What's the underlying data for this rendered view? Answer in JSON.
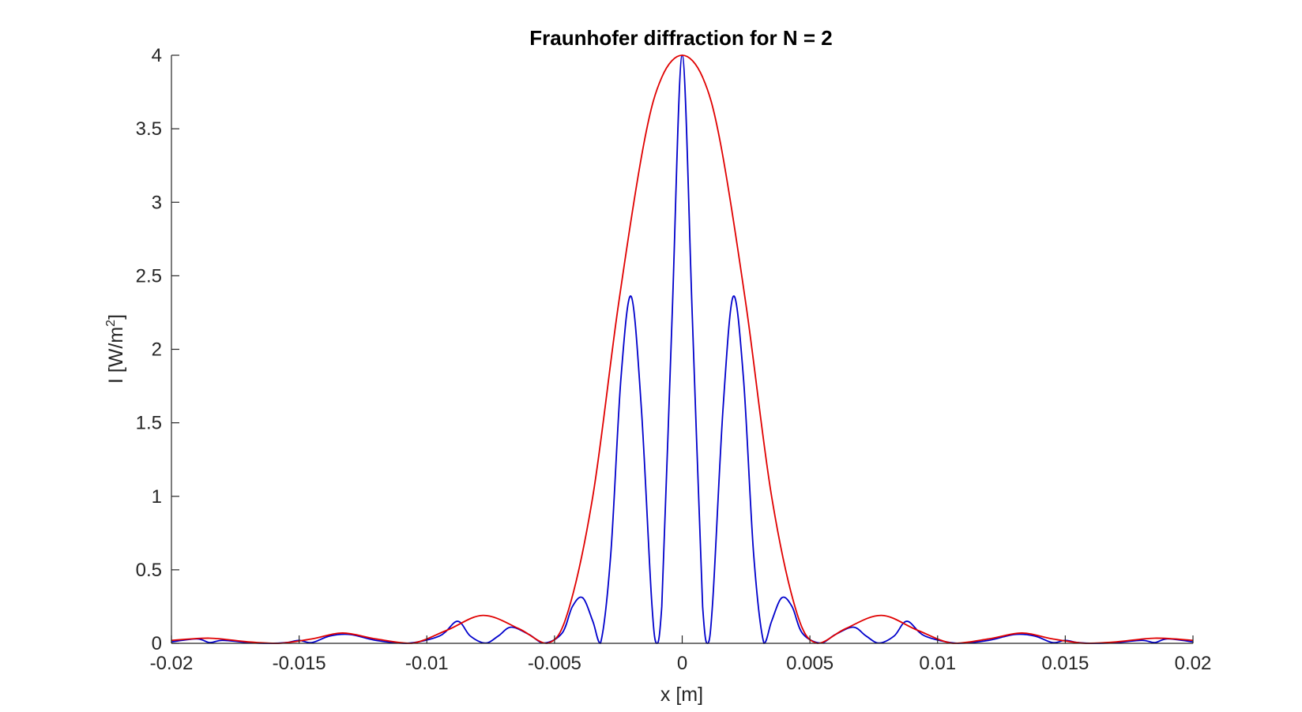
{
  "chart_data": {
    "type": "line",
    "title": "Fraunhofer diffraction for N = 2",
    "xlabel": "x [m]",
    "ylabel": "I [W/m",
    "ylabel_superscript": "2",
    "ylabel_close": "]",
    "xlim": [
      -0.02,
      0.02
    ],
    "ylim": [
      0,
      4
    ],
    "grid": false,
    "legend": "none",
    "xticks": [
      -0.02,
      -0.015,
      -0.01,
      -0.005,
      0,
      0.005,
      0.01,
      0.015,
      0.02
    ],
    "xtick_labels": [
      "-0.02",
      "-0.015",
      "-0.01",
      "-0.005",
      "0",
      "0.005",
      "0.01",
      "0.015",
      "0.02"
    ],
    "yticks": [
      0,
      0.5,
      1,
      1.5,
      2,
      2.5,
      3,
      3.5,
      4
    ],
    "ytick_labels": [
      "0",
      "0.5",
      "1",
      "1.5",
      "2",
      "2.5",
      "3",
      "3.5",
      "4"
    ],
    "series": [
      {
        "color": "#0000cc",
        "x": [
          -0.02,
          -0.019,
          -0.0185,
          -0.018,
          -0.017,
          -0.0162,
          -0.0155,
          -0.015,
          -0.0145,
          -0.0138,
          -0.013,
          -0.012,
          -0.0108,
          -0.0095,
          -0.0088,
          -0.0083,
          -0.0077,
          -0.0072,
          -0.0067,
          -0.006,
          -0.0054,
          -0.0047,
          -0.0043,
          -0.0039,
          -0.0035,
          -0.0032,
          -0.0028,
          -0.0024,
          -0.002,
          -0.0016,
          -0.0012,
          -0.001,
          -0.0008,
          -0.0004,
          0,
          0.0004,
          0.0008,
          0.001,
          0.0012,
          0.0016,
          0.002,
          0.0024,
          0.0028,
          0.0032,
          0.0035,
          0.0039,
          0.0043,
          0.0047,
          0.0054,
          0.006,
          0.0067,
          0.0072,
          0.0077,
          0.0083,
          0.0088,
          0.0095,
          0.0108,
          0.012,
          0.013,
          0.0138,
          0.0145,
          0.015,
          0.0155,
          0.0162,
          0.017,
          0.018,
          0.0185,
          0.019,
          0.02
        ],
        "y": [
          0.01,
          0.03,
          0.005,
          0.02,
          0.005,
          0.0,
          0.005,
          0.02,
          0.005,
          0.05,
          0.06,
          0.02,
          0.0,
          0.05,
          0.15,
          0.05,
          0.002,
          0.05,
          0.11,
          0.06,
          0.002,
          0.07,
          0.25,
          0.31,
          0.15,
          0.0,
          0.6,
          1.8,
          2.36,
          1.6,
          0.3,
          0.0,
          0.25,
          2.2,
          4.0,
          2.2,
          0.25,
          0.0,
          0.3,
          1.6,
          2.36,
          1.8,
          0.6,
          0.0,
          0.15,
          0.31,
          0.25,
          0.07,
          0.002,
          0.06,
          0.11,
          0.05,
          0.002,
          0.05,
          0.15,
          0.05,
          0.0,
          0.02,
          0.06,
          0.05,
          0.005,
          0.02,
          0.005,
          0.0,
          0.005,
          0.02,
          0.005,
          0.03,
          0.01
        ]
      },
      {
        "color": "#e00000",
        "x": [
          -0.02,
          -0.0185,
          -0.017,
          -0.0158,
          -0.0145,
          -0.0133,
          -0.012,
          -0.0106,
          -0.0092,
          -0.0078,
          -0.0064,
          -0.0053,
          -0.0045,
          -0.0035,
          -0.0025,
          -0.0015,
          -0.0008,
          0,
          0.0008,
          0.0015,
          0.0025,
          0.0035,
          0.0045,
          0.0053,
          0.0064,
          0.0078,
          0.0092,
          0.0106,
          0.012,
          0.0133,
          0.0145,
          0.0158,
          0.017,
          0.0185,
          0.02
        ],
        "y": [
          0.02,
          0.035,
          0.01,
          0.0,
          0.03,
          0.07,
          0.03,
          0.0,
          0.09,
          0.19,
          0.1,
          0.0,
          0.2,
          1.0,
          2.3,
          3.4,
          3.85,
          4.0,
          3.85,
          3.4,
          2.3,
          1.0,
          0.2,
          0.0,
          0.1,
          0.19,
          0.09,
          0.0,
          0.03,
          0.07,
          0.03,
          0.0,
          0.01,
          0.035,
          0.02
        ]
      }
    ]
  }
}
